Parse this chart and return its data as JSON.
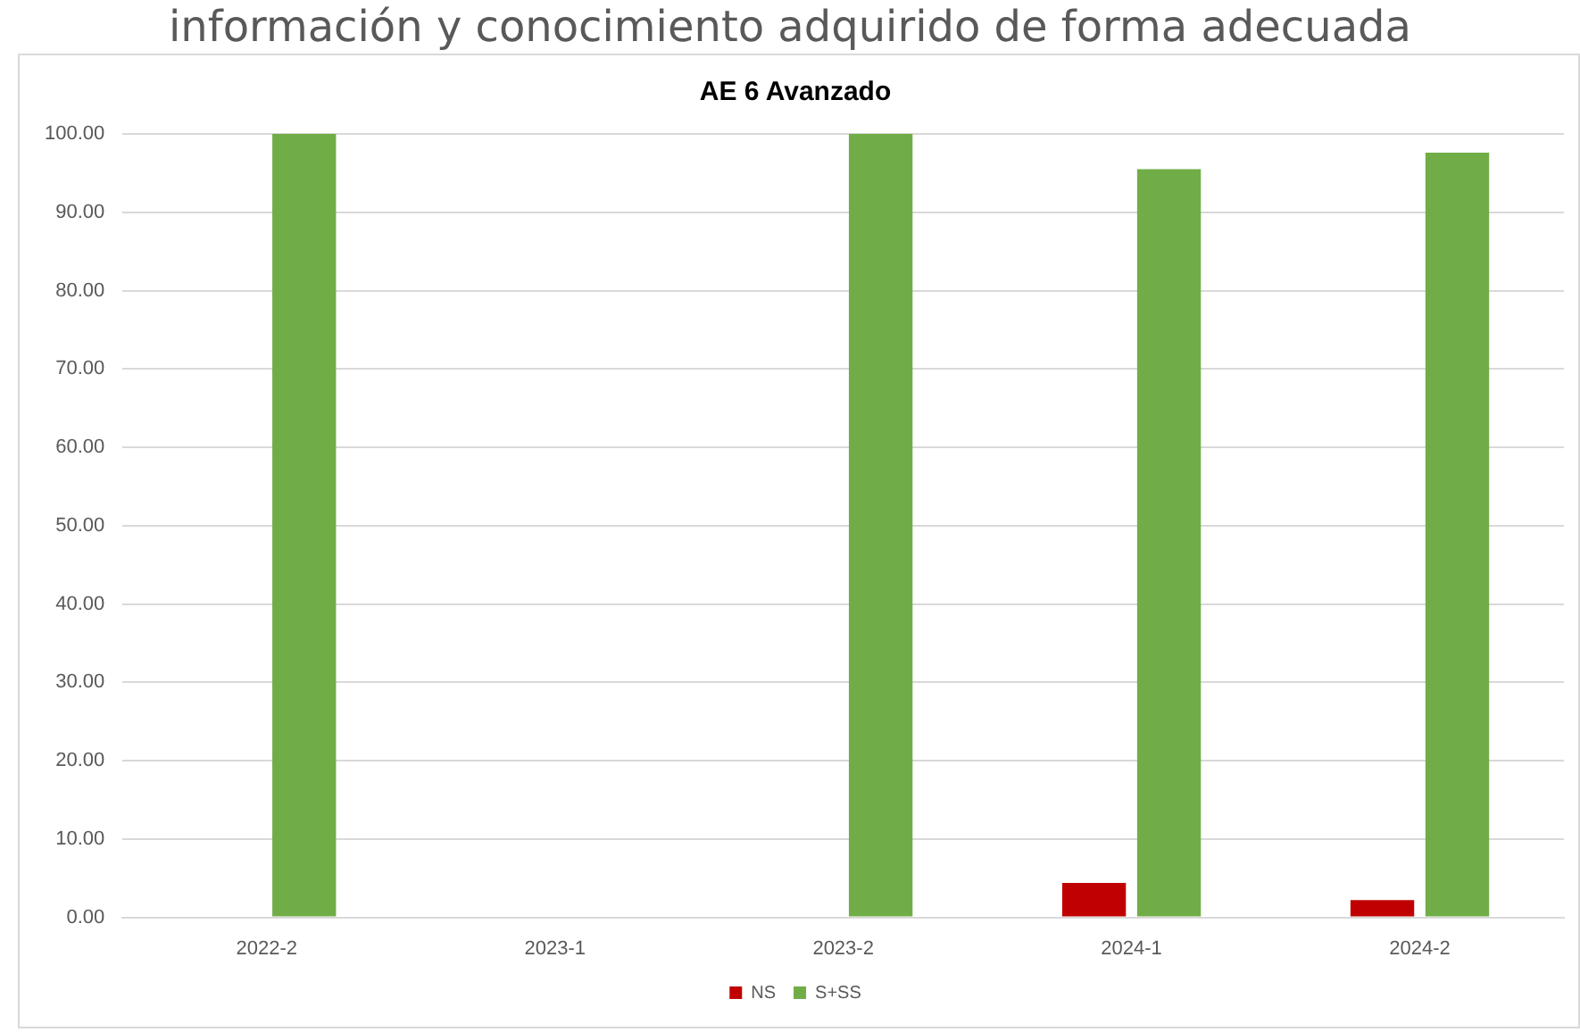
{
  "chart_data": {
    "type": "bar",
    "title": "AE 6 Avanzado",
    "annotations": [
      "información y conocimiento adquirido de forma adecuada"
    ],
    "categories": [
      "2022-2",
      "2023-1",
      "2023-2",
      "2024-1",
      "2024-2"
    ],
    "series": [
      {
        "name": "NS",
        "color": "#c00000",
        "values": [
          null,
          null,
          null,
          4.4,
          2.2
        ]
      },
      {
        "name": "S+SS",
        "color": "#70ad47",
        "values": [
          100,
          null,
          100,
          95.5,
          97.6
        ]
      }
    ],
    "ylim": [
      0,
      100
    ],
    "yticks": [
      {
        "value": 0,
        "label": "0.00"
      },
      {
        "value": 10,
        "label": "10.00"
      },
      {
        "value": 20,
        "label": "20.00"
      },
      {
        "value": 30,
        "label": "30.00"
      },
      {
        "value": 40,
        "label": "40.00"
      },
      {
        "value": 50,
        "label": "50.00"
      },
      {
        "value": 60,
        "label": "60.00"
      },
      {
        "value": 70,
        "label": "70.00"
      },
      {
        "value": 80,
        "label": "80.00"
      },
      {
        "value": 90,
        "label": "90.00"
      },
      {
        "value": 100,
        "label": "100.00"
      }
    ],
    "grid": "y",
    "legend": "bottom"
  }
}
